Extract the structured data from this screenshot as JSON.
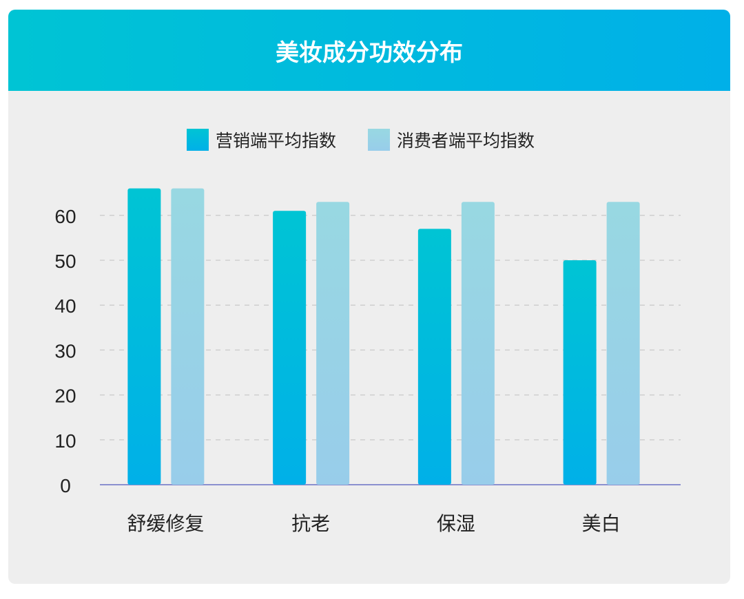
{
  "chart_data": {
    "type": "bar",
    "title": "美妆成分功效分布",
    "categories": [
      "舒缓修复",
      "抗老",
      "保湿",
      "美白"
    ],
    "series": [
      {
        "name": "营销端平均指数",
        "values": [
          66,
          61,
          57,
          50
        ],
        "color_top": "#00c4d4",
        "color_bottom": "#00b0e8"
      },
      {
        "name": "消费者端平均指数",
        "values": [
          66,
          63,
          63,
          63
        ],
        "color_top": "#98d8e2",
        "color_bottom": "#98cdea"
      }
    ],
    "yticks": [
      0,
      10,
      20,
      30,
      40,
      50,
      60
    ],
    "ylim": [
      0,
      66
    ],
    "grid": true,
    "legend": "top-center",
    "xlabel": "",
    "ylabel": ""
  }
}
